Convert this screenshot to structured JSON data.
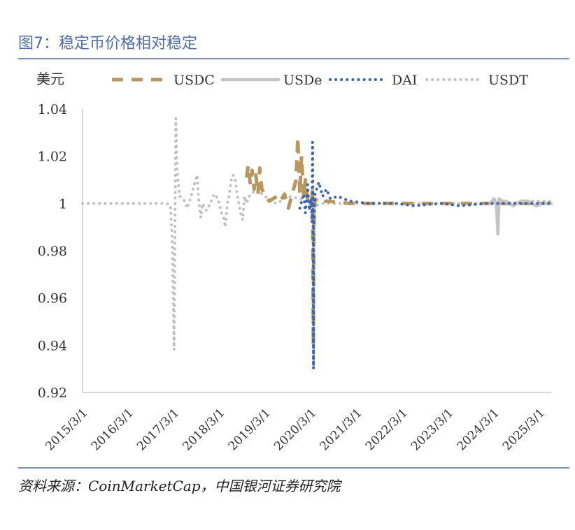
{
  "figure": {
    "title": "图7：稳定币价格相对稳定",
    "source": "资料来源：CoinMarketCap，中国银河证券研究院"
  },
  "chart_data": {
    "type": "line",
    "ylabel": "美元",
    "ylim": [
      0.92,
      1.04
    ],
    "y_ticks": [
      "0.92",
      "0.94",
      "0.96",
      "0.98",
      "1",
      "1.02",
      "1.04"
    ],
    "x_ticks": [
      "2015/3/1",
      "2016/3/1",
      "2017/3/1",
      "2018/3/1",
      "2019/3/1",
      "2020/3/1",
      "2021/3/1",
      "2022/3/1",
      "2023/3/1",
      "2024/3/1",
      "2025/3/1"
    ],
    "xlim": [
      "2015/3/1",
      "2025/6/1"
    ],
    "grid": false,
    "legend_position": "top",
    "series": [
      {
        "name": "USDC",
        "color": "#b8975e",
        "style": "dashed",
        "points": [
          [
            "2018/10/1",
            1.011
          ],
          [
            "2018/10/15",
            1.016
          ],
          [
            "2018/11/1",
            1.008
          ],
          [
            "2018/11/15",
            1.014
          ],
          [
            "2018/12/1",
            1.006
          ],
          [
            "2018/12/15",
            1.012
          ],
          [
            "2019/1/1",
            1.004
          ],
          [
            "2019/1/15",
            1.015
          ],
          [
            "2019/2/1",
            1.006
          ],
          [
            "2019/3/1",
            1.003
          ],
          [
            "2019/4/1",
            1.001
          ],
          [
            "2019/5/1",
            1.002
          ],
          [
            "2019/6/1",
            1.003
          ],
          [
            "2019/7/1",
            1.001
          ],
          [
            "2019/8/1",
            1.004
          ],
          [
            "2019/9/1",
            0.998
          ],
          [
            "2019/10/1",
            1.004
          ],
          [
            "2019/11/1",
            1.01
          ],
          [
            "2019/11/15",
            1.028
          ],
          [
            "2019/12/1",
            1.004
          ],
          [
            "2019/12/15",
            1.02
          ],
          [
            "2020/1/1",
            1.003
          ],
          [
            "2020/1/15",
            1.01
          ],
          [
            "2020/2/1",
            1.002
          ],
          [
            "2020/3/1",
            0.998
          ],
          [
            "2020/3/10",
            1.006
          ],
          [
            "2020/3/15",
            0.975
          ],
          [
            "2020/3/18",
            0.94
          ],
          [
            "2020/3/21",
            0.985
          ],
          [
            "2020/3/25",
            0.995
          ],
          [
            "2020/4/1",
            1.002
          ],
          [
            "2020/5/1",
            1.0
          ],
          [
            "2020/7/1",
            1.001
          ],
          [
            "2021/1/1",
            1.0
          ],
          [
            "2021/6/1",
            1.0
          ],
          [
            "2022/1/1",
            1.0
          ],
          [
            "2023/1/1",
            1.0
          ],
          [
            "2024/1/1",
            1.0
          ],
          [
            "2025/1/1",
            1.0
          ],
          [
            "2025/6/1",
            1.0
          ]
        ]
      },
      {
        "name": "USDe",
        "color": "#c4c4c4",
        "style": "solid",
        "points": [
          [
            "2024/2/1",
            1.0
          ],
          [
            "2024/3/1",
            1.002
          ],
          [
            "2024/3/20",
            1.0
          ],
          [
            "2024/4/1",
            0.987
          ],
          [
            "2024/4/10",
            1.002
          ],
          [
            "2024/5/1",
            1.001
          ],
          [
            "2024/6/1",
            1.001
          ],
          [
            "2024/8/1",
            0.999
          ],
          [
            "2024/10/1",
            1.001
          ],
          [
            "2024/12/1",
            1.001
          ],
          [
            "2025/2/1",
            0.999
          ],
          [
            "2025/4/1",
            1.0
          ],
          [
            "2025/6/1",
            1.0
          ]
        ]
      },
      {
        "name": "DAI",
        "color": "#3a63b0",
        "style": "dotted",
        "points": [
          [
            "2019/12/1",
            0.998
          ],
          [
            "2020/1/1",
            1.004
          ],
          [
            "2020/1/15",
            0.996
          ],
          [
            "2020/2/1",
            1.008
          ],
          [
            "2020/2/15",
            0.997
          ],
          [
            "2020/3/1",
            1.002
          ],
          [
            "2020/3/8",
            0.992
          ],
          [
            "2020/3/12",
            1.026
          ],
          [
            "2020/3/16",
            0.995
          ],
          [
            "2020/3/19",
            0.93
          ],
          [
            "2020/3/22",
            0.99
          ],
          [
            "2020/4/1",
            1.004
          ],
          [
            "2020/5/1",
            1.009
          ],
          [
            "2020/6/1",
            1.003
          ],
          [
            "2020/7/1",
            1.006
          ],
          [
            "2020/8/1",
            1.002
          ],
          [
            "2020/10/1",
            1.003
          ],
          [
            "2021/1/1",
            1.001
          ],
          [
            "2021/6/1",
            1.0
          ],
          [
            "2022/1/1",
            1.0
          ],
          [
            "2022/6/1",
            0.999
          ],
          [
            "2023/1/1",
            1.0
          ],
          [
            "2023/6/1",
            0.999
          ],
          [
            "2024/1/1",
            1.0
          ],
          [
            "2024/6/1",
            1.0
          ],
          [
            "2025/1/1",
            1.0
          ],
          [
            "2025/6/1",
            1.0
          ]
        ]
      },
      {
        "name": "USDT",
        "color": "#c0c0c0",
        "style": "dotted",
        "points": [
          [
            "2015/3/1",
            1.0
          ],
          [
            "2016/3/1",
            1.0
          ],
          [
            "2016/12/1",
            1.0
          ],
          [
            "2017/1/1",
            1.0
          ],
          [
            "2017/2/1",
            0.999
          ],
          [
            "2017/2/15",
            0.985
          ],
          [
            "2017/3/1",
            0.938
          ],
          [
            "2017/3/15",
            1.036
          ],
          [
            "2017/3/25",
            1.014
          ],
          [
            "2017/4/15",
            1.003
          ],
          [
            "2017/5/15",
            1.002
          ],
          [
            "2017/6/15",
            0.998
          ],
          [
            "2017/7/15",
            1.003
          ],
          [
            "2017/8/15",
            1.009
          ],
          [
            "2017/9/1",
            1.012
          ],
          [
            "2017/9/15",
            1.001
          ],
          [
            "2017/10/1",
            0.994
          ],
          [
            "2017/10/15",
            1.0
          ],
          [
            "2017/11/15",
            0.997
          ],
          [
            "2017/12/15",
            1.0
          ],
          [
            "2018/1/15",
            1.004
          ],
          [
            "2018/2/15",
            1.002
          ],
          [
            "2018/3/15",
            0.996
          ],
          [
            "2018/4/1",
            0.994
          ],
          [
            "2018/4/15",
            0.99
          ],
          [
            "2018/5/1",
            1.0
          ],
          [
            "2018/5/15",
            1.003
          ],
          [
            "2018/6/1",
            1.01
          ],
          [
            "2018/6/15",
            1.012
          ],
          [
            "2018/7/1",
            1.011
          ],
          [
            "2018/7/15",
            1.005
          ],
          [
            "2018/8/1",
            1.0
          ],
          [
            "2018/8/15",
            0.996
          ],
          [
            "2018/9/1",
            0.993
          ],
          [
            "2018/9/15",
            1.003
          ],
          [
            "2018/10/1",
            1.0
          ],
          [
            "2018/11/1",
            1.004
          ],
          [
            "2018/12/1",
            1.005
          ],
          [
            "2019/1/1",
            1.006
          ],
          [
            "2019/2/1",
            1.004
          ],
          [
            "2019/3/1",
            1.003
          ],
          [
            "2019/4/1",
            1.001
          ],
          [
            "2019/6/1",
            1.0
          ],
          [
            "2019/9/1",
            1.003
          ],
          [
            "2019/12/1",
            1.002
          ],
          [
            "2020/2/1",
            1.001
          ],
          [
            "2020/3/1",
            0.998
          ],
          [
            "2020/3/12",
            1.006
          ],
          [
            "2020/3/16",
            0.99
          ],
          [
            "2020/3/19",
            0.96
          ],
          [
            "2020/3/21",
            0.93
          ],
          [
            "2020/3/24",
            0.985
          ],
          [
            "2020/4/1",
            0.999
          ],
          [
            "2020/6/1",
            1.0
          ],
          [
            "2021/1/1",
            1.0
          ],
          [
            "2022/1/1",
            1.0
          ],
          [
            "2023/1/1",
            1.0
          ],
          [
            "2024/1/1",
            1.0
          ],
          [
            "2024/6/1",
            1.0
          ],
          [
            "2025/1/1",
            1.001
          ],
          [
            "2025/6/1",
            1.001
          ]
        ]
      }
    ]
  }
}
